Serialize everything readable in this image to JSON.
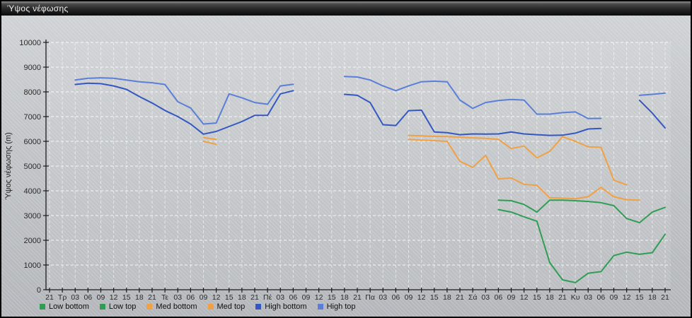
{
  "window": {
    "title": "Ύψος νέφωσης"
  },
  "legend": {
    "items": [
      {
        "label": "Low bottom",
        "color": "#2f9e54"
      },
      {
        "label": "Low top",
        "color": "#2f9e54"
      },
      {
        "label": "Med bottom",
        "color": "#f0a144"
      },
      {
        "label": "Med top",
        "color": "#f0a144"
      },
      {
        "label": "High bottom",
        "color": "#3457c1"
      },
      {
        "label": "High top",
        "color": "#5b7fd8"
      }
    ]
  },
  "chart_data": {
    "type": "line",
    "title": "Ύψος νέφωσης",
    "xlabel": "",
    "ylabel": "Ύψος νέφωσης (m)",
    "ylim": [
      0,
      10000
    ],
    "y_ticks": [
      0,
      1000,
      2000,
      3000,
      4000,
      5000,
      6000,
      7000,
      8000,
      9000,
      10000
    ],
    "grid": true,
    "legend_position": "bottom-left",
    "categories": [
      "21",
      "Τρ",
      "03",
      "06",
      "09",
      "12",
      "15",
      "18",
      "21",
      "Τε",
      "03",
      "06",
      "09",
      "12",
      "15",
      "18",
      "21",
      "Πέ",
      "03",
      "06",
      "09",
      "12",
      "15",
      "18",
      "21",
      "Πα",
      "03",
      "06",
      "09",
      "12",
      "15",
      "18",
      "21",
      "Σά",
      "03",
      "06",
      "09",
      "12",
      "15",
      "18",
      "21",
      "Κυ",
      "03",
      "06",
      "09",
      "12",
      "15",
      "18",
      "21"
    ],
    "series": [
      {
        "name": "Low bottom",
        "color": "#2f9e54",
        "values": [
          null,
          null,
          null,
          null,
          null,
          null,
          null,
          null,
          null,
          null,
          null,
          null,
          null,
          null,
          null,
          null,
          null,
          null,
          null,
          null,
          null,
          null,
          null,
          null,
          null,
          null,
          null,
          null,
          null,
          null,
          null,
          null,
          null,
          null,
          null,
          3240,
          3140,
          2950,
          2770,
          1100,
          400,
          290,
          670,
          730,
          1380,
          1520,
          1430,
          1500,
          2240
        ]
      },
      {
        "name": "Low top",
        "color": "#2f9e54",
        "values": [
          null,
          null,
          null,
          null,
          null,
          null,
          null,
          null,
          null,
          null,
          null,
          null,
          null,
          null,
          null,
          null,
          null,
          null,
          null,
          null,
          null,
          null,
          null,
          null,
          null,
          null,
          null,
          null,
          null,
          null,
          null,
          null,
          null,
          null,
          null,
          3620,
          3600,
          3450,
          3140,
          3620,
          3620,
          3600,
          3570,
          3520,
          3400,
          2880,
          2710,
          3140,
          3330
        ]
      },
      {
        "name": "Med bottom",
        "color": "#f0a144",
        "values": [
          null,
          null,
          null,
          null,
          null,
          null,
          null,
          null,
          null,
          null,
          null,
          null,
          6000,
          5880,
          null,
          null,
          null,
          null,
          null,
          null,
          null,
          null,
          null,
          null,
          null,
          null,
          null,
          null,
          6080,
          6050,
          6030,
          6000,
          5190,
          4950,
          5430,
          4480,
          4520,
          4260,
          4220,
          3720,
          3700,
          3680,
          3760,
          4140,
          3760,
          3640,
          3620,
          null,
          null
        ]
      },
      {
        "name": "Med top",
        "color": "#f0a144",
        "values": [
          null,
          null,
          null,
          null,
          null,
          null,
          null,
          null,
          null,
          null,
          null,
          null,
          6150,
          6080,
          null,
          null,
          null,
          null,
          null,
          null,
          null,
          null,
          null,
          null,
          null,
          null,
          null,
          null,
          6240,
          6220,
          6200,
          6190,
          6170,
          6140,
          6120,
          6080,
          5710,
          5810,
          5330,
          5590,
          6190,
          6000,
          5780,
          5760,
          4430,
          4240,
          null,
          null,
          null
        ]
      },
      {
        "name": "High bottom",
        "color": "#3457c1",
        "values": [
          null,
          null,
          8300,
          8350,
          8330,
          8240,
          8100,
          7810,
          7550,
          7250,
          7000,
          6700,
          6290,
          6400,
          6600,
          6800,
          7050,
          7050,
          7920,
          8050,
          null,
          null,
          null,
          7900,
          7860,
          7570,
          6670,
          6640,
          7240,
          7260,
          6380,
          6350,
          6270,
          6300,
          6290,
          6300,
          6380,
          6300,
          6270,
          6240,
          6250,
          6330,
          6500,
          6520,
          null,
          null,
          7660,
          7140,
          6540
        ]
      },
      {
        "name": "High top",
        "color": "#5b7fd8",
        "values": [
          null,
          null,
          8480,
          8550,
          8570,
          8550,
          8480,
          8410,
          8370,
          8300,
          7600,
          7350,
          6700,
          6740,
          7920,
          7760,
          7570,
          7500,
          8240,
          8310,
          null,
          null,
          null,
          8620,
          8600,
          8480,
          8240,
          8050,
          8240,
          8410,
          8430,
          8410,
          7670,
          7330,
          7570,
          7650,
          7690,
          7670,
          7100,
          7100,
          7160,
          7190,
          6920,
          6930,
          null,
          null,
          7860,
          7900,
          7950
        ]
      }
    ]
  }
}
